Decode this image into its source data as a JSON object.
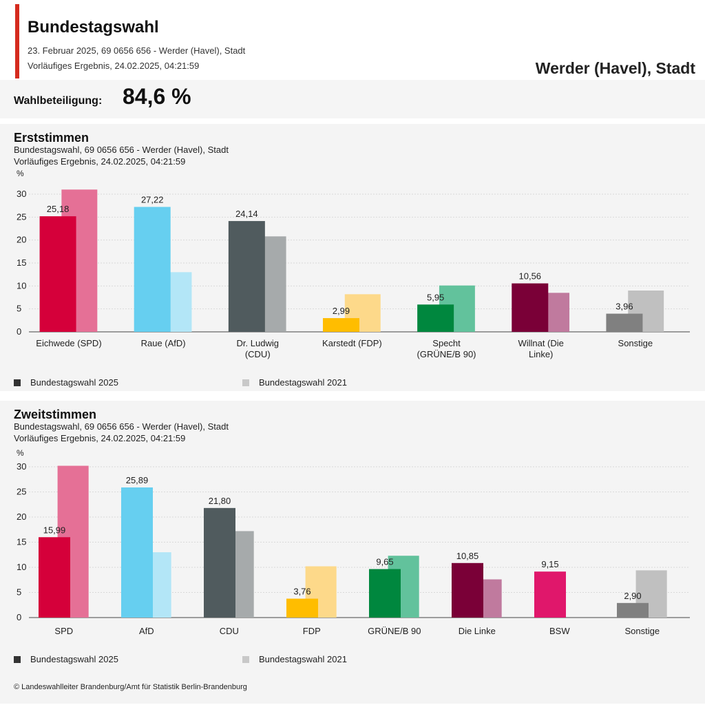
{
  "header": {
    "title": "Bundestagswahl",
    "subtitle_line1": "23. Februar 2025, 69 0656 656 - Werder (Havel), Stadt",
    "subtitle_line2": "Vorläufiges Ergebnis, 24.02.2025, 04:21:59",
    "place": "Werder (Havel), Stadt"
  },
  "turnout": {
    "label": "Wahlbeteiligung:",
    "value": "84,6 %"
  },
  "legend": {
    "series_2025": "Bundestagswahl 2025",
    "series_2021": "Bundestagswahl 2021",
    "color_2025": "#444444",
    "color_2021": "#c8c8c8"
  },
  "footer": "© Landeswahlleiter Brandenburg/Amt für Statistik Berlin-Brandenburg",
  "chart_data": [
    {
      "type": "bar",
      "title": "Erststimmen",
      "subtitle_line1": "Bundestagswahl, 69 0656 656 - Werder (Havel), Stadt",
      "subtitle_line2": "Vorläufiges Ergebnis, 24.02.2025, 04:21:59",
      "ylabel": "%",
      "ylim": [
        0,
        30
      ],
      "yticks": [
        0,
        5,
        10,
        15,
        20,
        25,
        30
      ],
      "grid": true,
      "legend_position": "bottom",
      "categories": [
        [
          "Eichwede (SPD)"
        ],
        [
          "Raue (AfD)"
        ],
        [
          "Dr. Ludwig",
          "(CDU)"
        ],
        [
          "Karstedt (FDP)"
        ],
        [
          "Specht",
          "(GRÜNE/B 90)"
        ],
        [
          "Willnat (Die",
          "Linke)"
        ],
        [
          "Sonstige"
        ]
      ],
      "series": [
        {
          "name": "Bundestagswahl 2025",
          "values": [
            25.18,
            27.22,
            24.14,
            2.99,
            5.95,
            10.56,
            3.96
          ],
          "labels": [
            "25,18",
            "27,22",
            "24,14",
            "2,99",
            "5,95",
            "10,56",
            "3,96"
          ]
        },
        {
          "name": "Bundestagswahl 2021",
          "values": [
            31.0,
            13.0,
            20.8,
            8.2,
            10.1,
            8.5,
            9.0
          ]
        }
      ],
      "colors_2025": [
        "#d5003a",
        "#66cff0",
        "#505b5e",
        "#ffbd00",
        "#00873e",
        "#7a0037",
        "#808080"
      ],
      "colors_2021": [
        "#e57096",
        "#b3e6f7",
        "#a6aaab",
        "#fdd98a",
        "#62c29c",
        "#c07a9e",
        "#c0c0c0"
      ]
    },
    {
      "type": "bar",
      "title": "Zweitstimmen",
      "subtitle_line1": "Bundestagswahl, 69 0656 656 - Werder (Havel), Stadt",
      "subtitle_line2": "Vorläufiges Ergebnis, 24.02.2025, 04:21:59",
      "ylabel": "%",
      "ylim": [
        0,
        30
      ],
      "yticks": [
        0,
        5,
        10,
        15,
        20,
        25,
        30
      ],
      "grid": true,
      "legend_position": "bottom",
      "categories": [
        [
          "SPD"
        ],
        [
          "AfD"
        ],
        [
          "CDU"
        ],
        [
          "FDP"
        ],
        [
          "GRÜNE/B 90"
        ],
        [
          "Die Linke"
        ],
        [
          "BSW"
        ],
        [
          "Sonstige"
        ]
      ],
      "series": [
        {
          "name": "Bundestagswahl 2025",
          "values": [
            15.99,
            25.89,
            21.8,
            3.76,
            9.65,
            10.85,
            9.15,
            2.9
          ],
          "labels": [
            "15,99",
            "25,89",
            "21,80",
            "3,76",
            "9,65",
            "10,85",
            "9,15",
            "2,90"
          ]
        },
        {
          "name": "Bundestagswahl 2021",
          "values": [
            30.2,
            13.0,
            17.2,
            10.2,
            12.3,
            7.6,
            null,
            9.4
          ]
        }
      ],
      "colors_2025": [
        "#d5003a",
        "#66cff0",
        "#505b5e",
        "#ffbd00",
        "#00873e",
        "#7a0037",
        "#e0176b",
        "#808080"
      ],
      "colors_2021": [
        "#e57096",
        "#b3e6f7",
        "#a6aaab",
        "#fdd98a",
        "#62c29c",
        "#c07a9e",
        "#f08db3",
        "#c0c0c0"
      ]
    }
  ]
}
